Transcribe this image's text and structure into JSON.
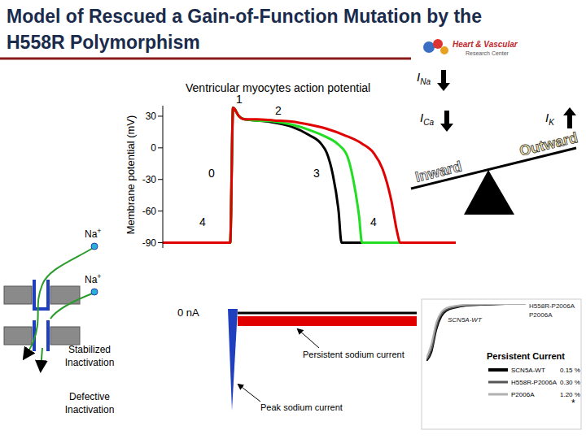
{
  "title_lines": [
    "Model of Rescued a Gain-of-Function Mutation by the",
    "H558R Polymorphism"
  ],
  "logo": [
    "Heart & Vascular",
    "Research Center"
  ],
  "chart_data": [
    {
      "type": "line",
      "title": "Ventricular myocytes action potential",
      "y_label": "Membrane potential (mV)",
      "xlim": [
        0,
        100
      ],
      "ylim": [
        -95,
        40
      ],
      "yticks": [
        30,
        0,
        -30,
        -60,
        -90
      ],
      "tick_labels": "y",
      "grid": false,
      "marker": "none",
      "line_style": "solid",
      "annotations": [
        "0",
        "1",
        "2",
        "3",
        "4",
        "4"
      ],
      "series": [
        {
          "color": "#000000",
          "x": [
            0,
            23,
            24,
            26,
            28,
            32,
            38,
            44,
            50,
            54,
            56,
            58,
            60,
            61,
            100
          ],
          "values": [
            -90,
            -90,
            38,
            30,
            27,
            26,
            24,
            20,
            12,
            4,
            -5,
            -25,
            -60,
            -90,
            -90
          ]
        },
        {
          "color": "#22dd22",
          "x": [
            0,
            23,
            24,
            26,
            28,
            32,
            38,
            44,
            50,
            56,
            60,
            63,
            65,
            67,
            68,
            100
          ],
          "values": [
            -90,
            -90,
            38,
            30,
            27,
            26,
            25,
            22,
            17,
            10,
            3,
            -8,
            -30,
            -65,
            -90,
            -90
          ]
        },
        {
          "color": "#e00000",
          "x": [
            0,
            23,
            24,
            26,
            28,
            32,
            38,
            44,
            50,
            56,
            62,
            68,
            72,
            75,
            78,
            80,
            81,
            100
          ],
          "values": [
            -90,
            -90,
            38,
            30,
            27,
            27,
            26,
            25,
            22,
            18,
            12,
            4,
            -5,
            -20,
            -50,
            -80,
            -90,
            -90
          ]
        }
      ]
    },
    {
      "type": "line",
      "tick_labels": false,
      "grid": false,
      "marker": "none",
      "line_style": "solid",
      "xlim": [
        0,
        100
      ],
      "ylim": [
        0,
        1
      ],
      "x": [
        0,
        5,
        10,
        15,
        20,
        30,
        40,
        60,
        80,
        100
      ],
      "series": [
        {
          "name": "SCN5A-WT",
          "color": "#000000",
          "values": [
            0,
            0.15,
            0.55,
            0.78,
            0.88,
            0.94,
            0.97,
            0.99,
            1,
            1
          ]
        },
        {
          "name": "H558R-P2006A",
          "color": "#555555",
          "values": [
            0.02,
            0.2,
            0.6,
            0.82,
            0.9,
            0.95,
            0.98,
            0.99,
            1,
            1
          ]
        },
        {
          "name": "P2006A",
          "color": "#b0b0b0",
          "values": [
            0.05,
            0.3,
            0.68,
            0.86,
            0.93,
            0.97,
            0.99,
            1,
            1,
            1
          ]
        }
      ]
    }
  ],
  "seesaw": {
    "currents": [
      {
        "symbol": "I",
        "subscript": "Na",
        "arrow": "down"
      },
      {
        "symbol": "I",
        "subscript": "Ca",
        "arrow": "down"
      },
      {
        "symbol": "I",
        "subscript": "K",
        "arrow": "up"
      }
    ],
    "labels": [
      "Inward",
      "Outward"
    ]
  },
  "channel": {
    "ions": [
      {
        "text": "Na",
        "sup": "+"
      },
      {
        "text": "Na",
        "sup": "+"
      }
    ],
    "states": [
      [
        "Stabilized",
        "Inactivation"
      ],
      [
        "Defective",
        "Inactivation"
      ]
    ]
  },
  "currents": {
    "zero_label": "0 nA",
    "labels": [
      "Persistent sodium current",
      "Peak sodium current"
    ]
  },
  "table": {
    "title": "Persistent Current",
    "rows": [
      [
        "SCN5A-WT",
        "0.15 %"
      ],
      [
        "H558R-P2006A",
        "0.30 %"
      ],
      [
        "P2006A",
        "1.20 %"
      ]
    ],
    "note": "*"
  }
}
